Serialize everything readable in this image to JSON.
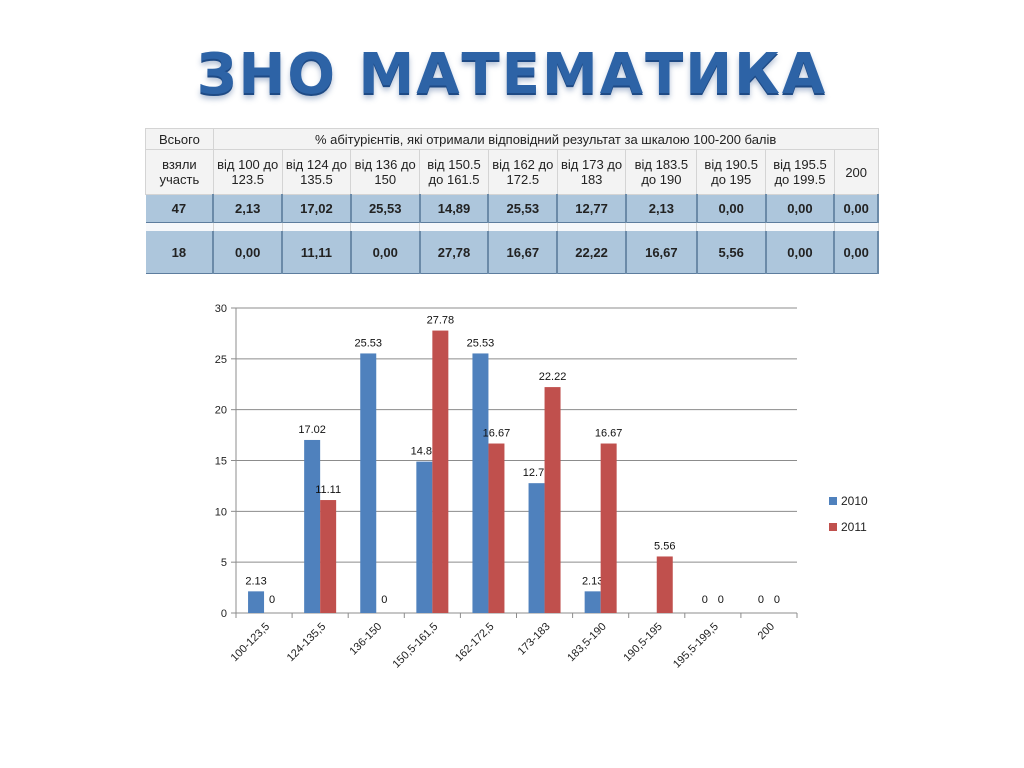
{
  "title": "ЗНО МАТЕМАТИКА",
  "table": {
    "col_total_top": "Всього",
    "col_total_bottom_1": "взяли",
    "col_total_bottom_2": "участь",
    "span_header": "% абітурієнтів, які отримали відповідний результат за шкалою 100-200 балів",
    "range_headers": [
      [
        "від 100 до",
        "123.5"
      ],
      [
        "від 124 до",
        "135.5"
      ],
      [
        "від 136 до",
        "150"
      ],
      [
        "від 150.5",
        "до 161.5"
      ],
      [
        "від 162 до",
        "172.5"
      ],
      [
        "від 173 до",
        "183"
      ],
      [
        "від 183.5",
        "до 190"
      ],
      [
        "від 190.5",
        "до 195"
      ],
      [
        "від 195.5",
        "до 199.5"
      ],
      [
        "200",
        ""
      ]
    ],
    "rows": [
      [
        "47",
        "2,13",
        "17,02",
        "25,53",
        "14,89",
        "25,53",
        "12,77",
        "2,13",
        "0,00",
        "0,00",
        "0,00"
      ],
      [
        "18",
        "0,00",
        "11,11",
        "0,00",
        "27,78",
        "16,67",
        "22,22",
        "16,67",
        "5,56",
        "0,00",
        "0,00"
      ]
    ]
  },
  "chart_data": {
    "type": "bar",
    "categories": [
      "100-123,5",
      "124-135,5",
      "136-150",
      "150,5-161,5",
      "162-172,5",
      "173-183",
      "183,5-190",
      "190,5-195",
      "195,5-199,5",
      "200"
    ],
    "series": [
      {
        "name": "2010",
        "color": "#4f81bd",
        "values": [
          2.13,
          17.02,
          25.53,
          14.89,
          25.53,
          12.77,
          2.13,
          null,
          0,
          0
        ]
      },
      {
        "name": "2011",
        "color": "#c0504d",
        "values": [
          0,
          11.11,
          0,
          27.78,
          16.67,
          22.22,
          16.67,
          5.56,
          0,
          0
        ]
      }
    ],
    "labels": [
      [
        "2.13",
        "17.02",
        "25.53",
        "14.89",
        "25.53",
        "12.77",
        "2.13",
        "",
        "0",
        "0"
      ],
      [
        "0",
        "11.11",
        "0",
        "27.78",
        "16.67",
        "22.22",
        "16.67",
        "5.56",
        "0",
        "0"
      ]
    ],
    "ylim": [
      0,
      30
    ],
    "yticks": [
      0,
      5,
      10,
      15,
      20,
      25,
      30
    ],
    "grid": true,
    "legend_position": "right",
    "title": "",
    "xlabel": "",
    "ylabel": ""
  }
}
